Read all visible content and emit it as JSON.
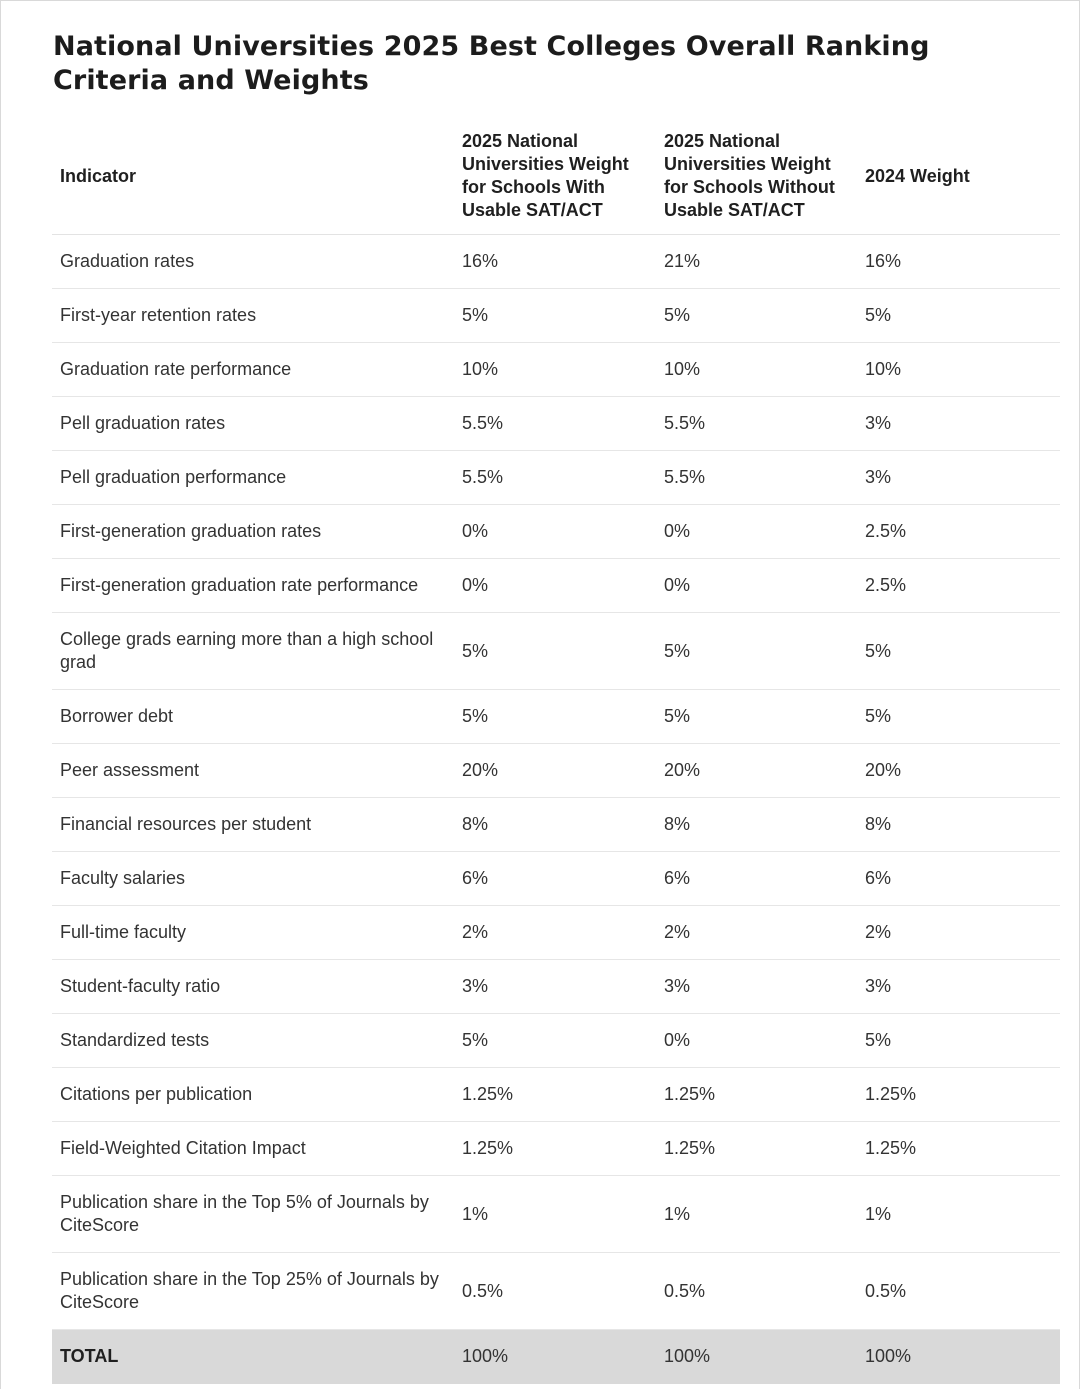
{
  "title": "National Universities 2025 Best Colleges Overall Ranking Criteria and Weights",
  "table": {
    "headers": [
      "Indicator",
      "2025 National Universities Weight for Schools With Usable SAT/ACT",
      "2025 National Universities Weight for Schools Without Usable SAT/ACT",
      "2024 Weight"
    ],
    "rows": [
      [
        "Graduation rates",
        "16%",
        "21%",
        "16%"
      ],
      [
        "First-year retention rates",
        "5%",
        "5%",
        "5%"
      ],
      [
        "Graduation rate performance",
        "10%",
        "10%",
        "10%"
      ],
      [
        "Pell graduation rates",
        "5.5%",
        "5.5%",
        "3%"
      ],
      [
        "Pell graduation performance",
        "5.5%",
        "5.5%",
        "3%"
      ],
      [
        "First-generation graduation rates",
        "0%",
        "0%",
        "2.5%"
      ],
      [
        "First-generation graduation rate performance",
        "0%",
        "0%",
        "2.5%"
      ],
      [
        "College grads earning more than a high school grad",
        "5%",
        "5%",
        "5%"
      ],
      [
        "Borrower debt",
        "5%",
        "5%",
        "5%"
      ],
      [
        "Peer assessment",
        "20%",
        "20%",
        "20%"
      ],
      [
        "Financial resources per student",
        "8%",
        "8%",
        "8%"
      ],
      [
        "Faculty salaries",
        "6%",
        "6%",
        "6%"
      ],
      [
        "Full-time faculty",
        "2%",
        "2%",
        "2%"
      ],
      [
        "Student-faculty ratio",
        "3%",
        "3%",
        "3%"
      ],
      [
        "Standardized tests",
        "5%",
        "0%",
        "5%"
      ],
      [
        "Citations per publication",
        "1.25%",
        "1.25%",
        "1.25%"
      ],
      [
        "Field-Weighted Citation Impact",
        "1.25%",
        "1.25%",
        "1.25%"
      ],
      [
        "Publication share in the Top 5% of Journals by CiteScore",
        "1%",
        "1%",
        "1%"
      ],
      [
        "Publication share in the Top 25% of Journals by CiteScore",
        "0.5%",
        "0.5%",
        "0.5%"
      ]
    ],
    "total": [
      "TOTAL",
      "100%",
      "100%",
      "100%"
    ]
  },
  "colors": {
    "total_row_bg": "#d9d9d9",
    "row_divider": "#e6e6e6",
    "title_text": "#1c1c1c"
  }
}
